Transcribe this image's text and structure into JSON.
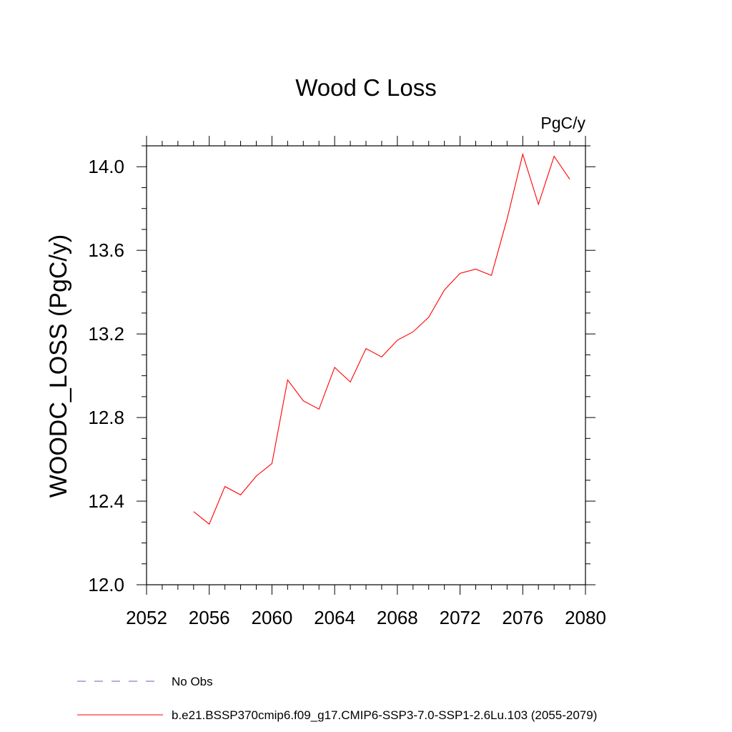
{
  "chart_data": {
    "type": "line",
    "title": "Wood C Loss",
    "units": "PgC/y",
    "xlabel": "",
    "ylabel": "WOODC_LOSS  (PgC/y)",
    "xlim": [
      2052,
      2080
    ],
    "ylim": [
      12.0,
      14.1
    ],
    "x_ticks": [
      "2052",
      "2056",
      "2060",
      "2064",
      "2068",
      "2072",
      "2076",
      "2080"
    ],
    "y_ticks": [
      "12.0",
      "12.4",
      "12.8",
      "13.2",
      "13.6",
      "14.0"
    ],
    "x_tick_values": [
      2052,
      2056,
      2060,
      2064,
      2068,
      2072,
      2076,
      2080
    ],
    "y_tick_values": [
      12.0,
      12.4,
      12.8,
      13.2,
      13.6,
      14.0
    ],
    "x": [
      2055,
      2056,
      2057,
      2058,
      2059,
      2060,
      2061,
      2062,
      2063,
      2064,
      2065,
      2066,
      2067,
      2068,
      2069,
      2070,
      2071,
      2072,
      2073,
      2074,
      2075,
      2076,
      2077,
      2078,
      2079
    ],
    "series": [
      {
        "name": "b.e21.BSSP370cmip6.f09_g17.CMIP6-SSP3-7.0-SSP1-2.6Lu.103 (2055-2079)",
        "color": "#ff0000",
        "values": [
          12.35,
          12.29,
          12.47,
          12.43,
          12.52,
          12.58,
          12.98,
          12.88,
          12.84,
          13.04,
          12.97,
          13.13,
          13.09,
          13.17,
          13.21,
          13.28,
          13.41,
          13.49,
          13.51,
          13.48,
          13.75,
          14.06,
          13.82,
          14.05,
          13.94
        ]
      }
    ],
    "legend": [
      {
        "label": "No Obs",
        "style": "dashed",
        "color": "#6a5acd"
      },
      {
        "label": "b.e21.BSSP370cmip6.f09_g17.CMIP6-SSP3-7.0-SSP1-2.6Lu.103 (2055-2079)",
        "style": "solid",
        "color": "#ff0000"
      }
    ],
    "legend_position": "bottom-left"
  }
}
